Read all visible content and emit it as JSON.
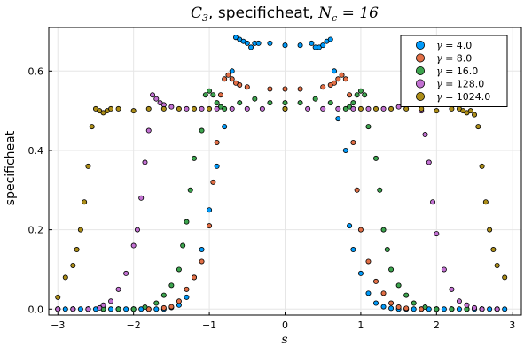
{
  "chart_data": {
    "type": "scatter",
    "title": {
      "prefix": "C",
      "prefix_sub": "3",
      "middle": ", specificheat, ",
      "var": "N",
      "var_sub": "c",
      "suffix": " = 16"
    },
    "xlabel": "s",
    "ylabel": "specificheat",
    "xlim": [
      -3.12,
      3.12
    ],
    "ylim": [
      -0.015,
      0.71
    ],
    "xticks": [
      -3,
      -2,
      -1,
      0,
      1,
      2,
      3
    ],
    "xtick_labels": [
      "−3",
      "−2",
      "−1",
      "0",
      "1",
      "2",
      "3"
    ],
    "yticks": [
      0.0,
      0.2,
      0.4,
      0.6
    ],
    "ytick_labels": [
      "0.0",
      "0.2",
      "0.4",
      "0.6"
    ],
    "grid": true,
    "legend_position": "top-right",
    "series": [
      {
        "name": "γ = 4.0",
        "legend_symbol": "γ",
        "legend_value": " = 4.0",
        "color": "#009AFA",
        "points": [
          [
            -3.0,
            0.0
          ],
          [
            -2.9,
            0.0
          ],
          [
            -2.8,
            0.0
          ],
          [
            -2.7,
            0.0
          ],
          [
            -2.6,
            0.0
          ],
          [
            -2.5,
            0.0
          ],
          [
            -2.4,
            0.0
          ],
          [
            -2.3,
            0.0
          ],
          [
            -2.2,
            0.0
          ],
          [
            -2.1,
            0.0
          ],
          [
            -2.0,
            0.0
          ],
          [
            -1.9,
            0.0
          ],
          [
            -1.8,
            0.0
          ],
          [
            -1.7,
            0.0
          ],
          [
            -1.6,
            0.0
          ],
          [
            -1.5,
            0.004
          ],
          [
            -1.4,
            0.01
          ],
          [
            -1.3,
            0.03
          ],
          [
            -1.2,
            0.08
          ],
          [
            -1.1,
            0.15
          ],
          [
            -1.0,
            0.25
          ],
          [
            -0.9,
            0.36
          ],
          [
            -0.8,
            0.46
          ],
          [
            -0.7,
            0.6
          ],
          [
            -0.65,
            0.685
          ],
          [
            -0.6,
            0.68
          ],
          [
            -0.55,
            0.675
          ],
          [
            -0.5,
            0.67
          ],
          [
            -0.45,
            0.66
          ],
          [
            -0.4,
            0.67
          ],
          [
            -0.35,
            0.67
          ],
          [
            -0.2,
            0.67
          ],
          [
            0.0,
            0.665
          ],
          [
            0.2,
            0.665
          ],
          [
            0.35,
            0.67
          ],
          [
            0.4,
            0.66
          ],
          [
            0.45,
            0.66
          ],
          [
            0.5,
            0.665
          ],
          [
            0.55,
            0.675
          ],
          [
            0.6,
            0.68
          ],
          [
            0.65,
            0.6
          ],
          [
            0.7,
            0.48
          ],
          [
            0.8,
            0.4
          ],
          [
            0.85,
            0.21
          ],
          [
            0.9,
            0.15
          ],
          [
            1.0,
            0.09
          ],
          [
            1.1,
            0.04
          ],
          [
            1.2,
            0.015
          ],
          [
            1.3,
            0.006
          ],
          [
            1.4,
            0.002
          ],
          [
            1.5,
            0.0
          ],
          [
            1.6,
            0.0
          ],
          [
            1.7,
            0.0
          ],
          [
            1.8,
            0.0
          ],
          [
            1.9,
            0.0
          ],
          [
            2.0,
            0.0
          ],
          [
            2.1,
            0.0
          ],
          [
            2.2,
            0.0
          ],
          [
            2.3,
            0.0
          ],
          [
            2.4,
            0.0
          ],
          [
            2.5,
            0.0
          ],
          [
            2.6,
            0.0
          ],
          [
            2.7,
            0.0
          ],
          [
            2.8,
            0.0
          ],
          [
            2.9,
            0.0
          ]
        ]
      },
      {
        "name": "γ = 8.0",
        "legend_symbol": "γ",
        "legend_value": " = 8.0",
        "color": "#E26F46",
        "points": [
          [
            -3.0,
            0.0
          ],
          [
            -2.8,
            0.0
          ],
          [
            -2.6,
            0.0
          ],
          [
            -2.4,
            0.0
          ],
          [
            -2.2,
            0.0
          ],
          [
            -2.0,
            0.0
          ],
          [
            -1.8,
            0.0
          ],
          [
            -1.6,
            0.003
          ],
          [
            -1.5,
            0.006
          ],
          [
            -1.4,
            0.02
          ],
          [
            -1.3,
            0.05
          ],
          [
            -1.2,
            0.08
          ],
          [
            -1.1,
            0.12
          ],
          [
            -1.0,
            0.21
          ],
          [
            -0.95,
            0.32
          ],
          [
            -0.9,
            0.42
          ],
          [
            -0.85,
            0.54
          ],
          [
            -0.8,
            0.58
          ],
          [
            -0.75,
            0.59
          ],
          [
            -0.7,
            0.58
          ],
          [
            -0.65,
            0.57
          ],
          [
            -0.6,
            0.565
          ],
          [
            -0.5,
            0.56
          ],
          [
            -0.2,
            0.555
          ],
          [
            0.0,
            0.555
          ],
          [
            0.2,
            0.555
          ],
          [
            0.5,
            0.56
          ],
          [
            0.6,
            0.565
          ],
          [
            0.65,
            0.57
          ],
          [
            0.7,
            0.58
          ],
          [
            0.75,
            0.59
          ],
          [
            0.8,
            0.58
          ],
          [
            0.85,
            0.54
          ],
          [
            0.9,
            0.42
          ],
          [
            0.95,
            0.3
          ],
          [
            1.0,
            0.2
          ],
          [
            1.1,
            0.12
          ],
          [
            1.2,
            0.07
          ],
          [
            1.3,
            0.04
          ],
          [
            1.4,
            0.015
          ],
          [
            1.5,
            0.005
          ],
          [
            1.6,
            0.002
          ],
          [
            1.8,
            0.0
          ],
          [
            2.0,
            0.0
          ],
          [
            2.2,
            0.0
          ],
          [
            2.4,
            0.0
          ],
          [
            2.6,
            0.0
          ],
          [
            2.8,
            0.0
          ]
        ]
      },
      {
        "name": "γ = 16.0",
        "legend_symbol": "γ",
        "legend_value": " = 16.0",
        "color": "#3DA44E",
        "points": [
          [
            -3.0,
            0.0
          ],
          [
            -2.8,
            0.0
          ],
          [
            -2.6,
            0.0
          ],
          [
            -2.4,
            0.0
          ],
          [
            -2.2,
            0.0
          ],
          [
            -2.0,
            0.0
          ],
          [
            -1.85,
            0.005
          ],
          [
            -1.7,
            0.015
          ],
          [
            -1.6,
            0.035
          ],
          [
            -1.5,
            0.06
          ],
          [
            -1.4,
            0.1
          ],
          [
            -1.35,
            0.16
          ],
          [
            -1.3,
            0.22
          ],
          [
            -1.25,
            0.3
          ],
          [
            -1.2,
            0.38
          ],
          [
            -1.1,
            0.45
          ],
          [
            -1.05,
            0.54
          ],
          [
            -1.0,
            0.55
          ],
          [
            -0.95,
            0.54
          ],
          [
            -0.9,
            0.52
          ],
          [
            -0.85,
            0.51
          ],
          [
            -0.8,
            0.505
          ],
          [
            -0.6,
            0.52
          ],
          [
            -0.4,
            0.53
          ],
          [
            -0.2,
            0.52
          ],
          [
            0.0,
            0.52
          ],
          [
            0.2,
            0.52
          ],
          [
            0.4,
            0.53
          ],
          [
            0.6,
            0.52
          ],
          [
            0.8,
            0.505
          ],
          [
            0.85,
            0.51
          ],
          [
            0.9,
            0.52
          ],
          [
            0.95,
            0.54
          ],
          [
            1.0,
            0.55
          ],
          [
            1.05,
            0.54
          ],
          [
            1.1,
            0.46
          ],
          [
            1.2,
            0.38
          ],
          [
            1.25,
            0.3
          ],
          [
            1.3,
            0.2
          ],
          [
            1.35,
            0.15
          ],
          [
            1.4,
            0.1
          ],
          [
            1.5,
            0.06
          ],
          [
            1.6,
            0.035
          ],
          [
            1.7,
            0.015
          ],
          [
            1.85,
            0.005
          ],
          [
            2.0,
            0.0
          ],
          [
            2.2,
            0.0
          ],
          [
            2.4,
            0.0
          ],
          [
            2.6,
            0.0
          ],
          [
            2.8,
            0.0
          ]
        ]
      },
      {
        "name": "γ = 128.0",
        "legend_symbol": "γ",
        "legend_value": " = 128.0",
        "color": "#C271D2",
        "points": [
          [
            -3.0,
            0.0
          ],
          [
            -2.8,
            0.0
          ],
          [
            -2.6,
            0.0
          ],
          [
            -2.45,
            0.003
          ],
          [
            -2.4,
            0.01
          ],
          [
            -2.3,
            0.02
          ],
          [
            -2.2,
            0.05
          ],
          [
            -2.1,
            0.09
          ],
          [
            -2.0,
            0.16
          ],
          [
            -1.95,
            0.2
          ],
          [
            -1.9,
            0.28
          ],
          [
            -1.85,
            0.37
          ],
          [
            -1.8,
            0.45
          ],
          [
            -1.75,
            0.54
          ],
          [
            -1.7,
            0.53
          ],
          [
            -1.65,
            0.52
          ],
          [
            -1.6,
            0.515
          ],
          [
            -1.5,
            0.51
          ],
          [
            -1.3,
            0.505
          ],
          [
            -1.1,
            0.505
          ],
          [
            -0.9,
            0.505
          ],
          [
            -0.7,
            0.505
          ],
          [
            -0.5,
            0.505
          ],
          [
            -0.3,
            0.505
          ],
          [
            0.0,
            0.505
          ],
          [
            0.3,
            0.505
          ],
          [
            0.5,
            0.505
          ],
          [
            0.7,
            0.505
          ],
          [
            0.9,
            0.505
          ],
          [
            1.1,
            0.505
          ],
          [
            1.3,
            0.505
          ],
          [
            1.5,
            0.51
          ],
          [
            1.6,
            0.515
          ],
          [
            1.65,
            0.52
          ],
          [
            1.7,
            0.53
          ],
          [
            1.75,
            0.54
          ],
          [
            1.8,
            0.5
          ],
          [
            1.85,
            0.44
          ],
          [
            1.9,
            0.37
          ],
          [
            1.95,
            0.27
          ],
          [
            2.0,
            0.19
          ],
          [
            2.1,
            0.1
          ],
          [
            2.2,
            0.05
          ],
          [
            2.3,
            0.02
          ],
          [
            2.4,
            0.01
          ],
          [
            2.5,
            0.003
          ],
          [
            2.6,
            0.0
          ],
          [
            2.8,
            0.0
          ]
        ]
      },
      {
        "name": "γ = 1024.0",
        "legend_symbol": "γ",
        "legend_value": " = 1024.0",
        "color": "#AC8D18",
        "points": [
          [
            -3.0,
            0.03
          ],
          [
            -2.9,
            0.08
          ],
          [
            -2.8,
            0.11
          ],
          [
            -2.75,
            0.15
          ],
          [
            -2.7,
            0.2
          ],
          [
            -2.65,
            0.27
          ],
          [
            -2.6,
            0.36
          ],
          [
            -2.55,
            0.46
          ],
          [
            -2.5,
            0.505
          ],
          [
            -2.45,
            0.5
          ],
          [
            -2.4,
            0.495
          ],
          [
            -2.35,
            0.5
          ],
          [
            -2.3,
            0.505
          ],
          [
            -2.2,
            0.505
          ],
          [
            -2.0,
            0.5
          ],
          [
            -1.8,
            0.505
          ],
          [
            -1.6,
            0.505
          ],
          [
            -1.4,
            0.505
          ],
          [
            -1.2,
            0.505
          ],
          [
            -1.0,
            0.505
          ],
          [
            0.0,
            0.505
          ],
          [
            1.0,
            0.505
          ],
          [
            1.2,
            0.505
          ],
          [
            1.4,
            0.505
          ],
          [
            1.6,
            0.505
          ],
          [
            1.8,
            0.505
          ],
          [
            2.0,
            0.5
          ],
          [
            2.2,
            0.505
          ],
          [
            2.3,
            0.505
          ],
          [
            2.35,
            0.5
          ],
          [
            2.4,
            0.495
          ],
          [
            2.45,
            0.5
          ],
          [
            2.5,
            0.49
          ],
          [
            2.55,
            0.46
          ],
          [
            2.6,
            0.36
          ],
          [
            2.65,
            0.27
          ],
          [
            2.7,
            0.2
          ],
          [
            2.75,
            0.15
          ],
          [
            2.8,
            0.11
          ],
          [
            2.9,
            0.08
          ]
        ]
      }
    ]
  }
}
